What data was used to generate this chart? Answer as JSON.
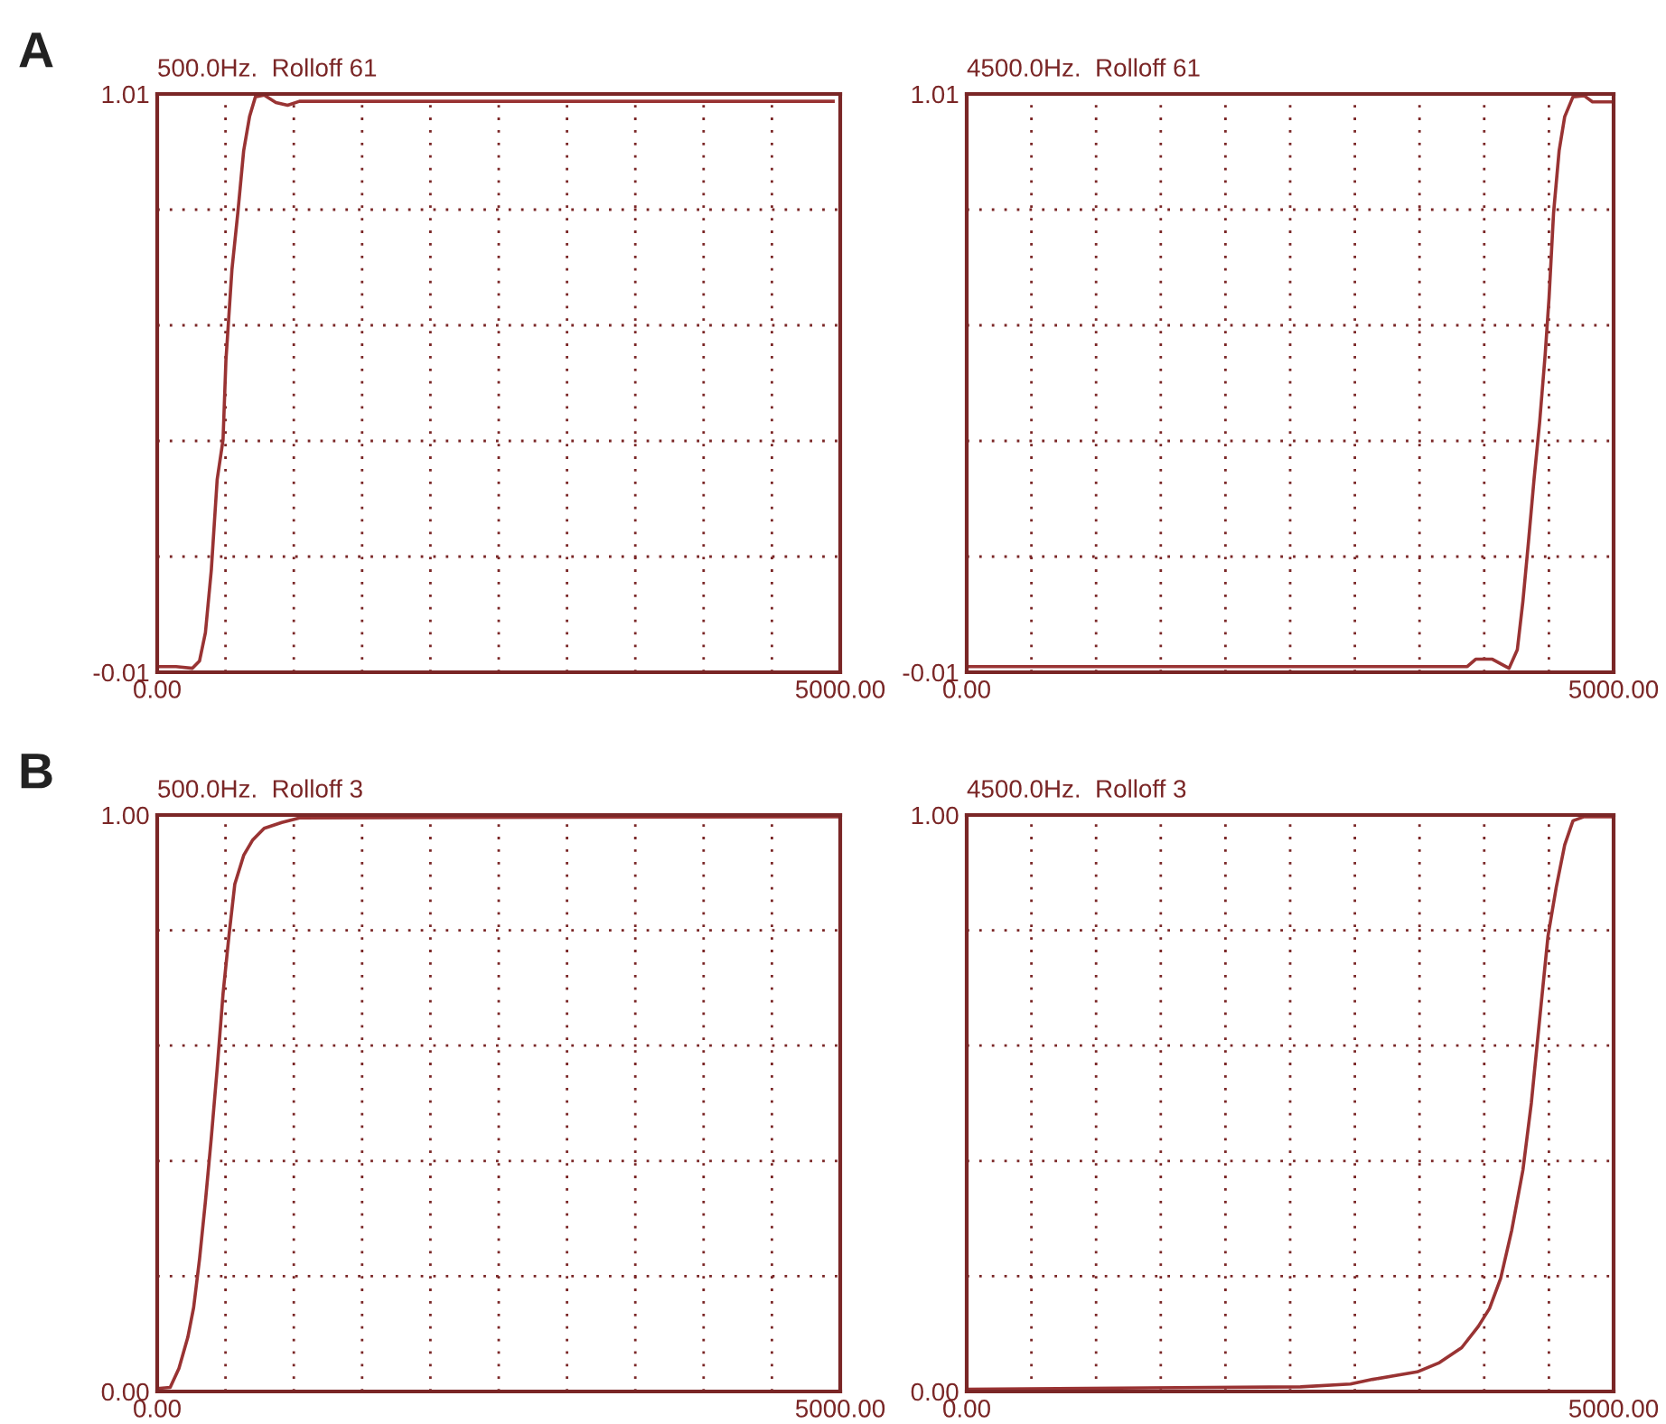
{
  "chart_data": [
    {
      "type": "line",
      "title": "500.0Hz.  Rolloff 61",
      "annotations": [
        "A"
      ],
      "grid": true,
      "line_style": "solid",
      "marker": "none",
      "xlim": [
        0,
        5000
      ],
      "xticks": [
        {
          "value": 0,
          "label": "0.00"
        },
        {
          "value": 500,
          "label": null
        },
        {
          "value": 1000,
          "label": null
        },
        {
          "value": 1500,
          "label": null
        },
        {
          "value": 2000,
          "label": null
        },
        {
          "value": 2500,
          "label": null
        },
        {
          "value": 3000,
          "label": null
        },
        {
          "value": 3500,
          "label": null
        },
        {
          "value": 4000,
          "label": null
        },
        {
          "value": 4500,
          "label": null
        },
        {
          "value": 5000,
          "label": "5000.00"
        }
      ],
      "ylim": [
        -0.01,
        1.01
      ],
      "yticks": [
        {
          "value": -0.01,
          "label": "-0.01"
        },
        {
          "value": 0.194,
          "label": null
        },
        {
          "value": 0.398,
          "label": null
        },
        {
          "value": 0.602,
          "label": null
        },
        {
          "value": 0.806,
          "label": null
        },
        {
          "value": 1.01,
          "label": "1.01"
        }
      ],
      "series": [
        {
          "color": "#993333",
          "x": [
            0,
            138,
            258,
            310,
            353,
            396,
            439,
            482,
            503,
            547,
            590,
            633,
            676,
            719,
            783,
            869,
            955,
            1041,
            1106,
            4948
          ],
          "values": [
            0.0,
            0.0,
            -0.003,
            0.01,
            0.06,
            0.17,
            0.33,
            0.4,
            0.54,
            0.7,
            0.8,
            0.91,
            0.97,
            1.005,
            1.008,
            0.995,
            0.99,
            0.997,
            0.997,
            0.997
          ]
        }
      ]
    },
    {
      "type": "line",
      "title": "4500.0Hz.  Rolloff 61",
      "grid": true,
      "line_style": "solid",
      "marker": "none",
      "xlim": [
        0,
        5000
      ],
      "xticks": [
        {
          "value": 0,
          "label": "0.00"
        },
        {
          "value": 500,
          "label": null
        },
        {
          "value": 1000,
          "label": null
        },
        {
          "value": 1500,
          "label": null
        },
        {
          "value": 2000,
          "label": null
        },
        {
          "value": 2500,
          "label": null
        },
        {
          "value": 3000,
          "label": null
        },
        {
          "value": 3500,
          "label": null
        },
        {
          "value": 4000,
          "label": null
        },
        {
          "value": 4500,
          "label": null
        },
        {
          "value": 5000,
          "label": "5000.00"
        }
      ],
      "ylim": [
        -0.01,
        1.01
      ],
      "yticks": [
        {
          "value": -0.01,
          "label": "-0.01"
        },
        {
          "value": 0.194,
          "label": null
        },
        {
          "value": 0.398,
          "label": null
        },
        {
          "value": 0.602,
          "label": null
        },
        {
          "value": 0.806,
          "label": null
        },
        {
          "value": 1.01,
          "label": "1.01"
        }
      ],
      "series": [
        {
          "color": "#993333",
          "x": [
            0,
            3869,
            3934,
            4063,
            4192,
            4256,
            4299,
            4342,
            4385,
            4428,
            4471,
            4501,
            4536,
            4579,
            4622,
            4686,
            4772,
            4837,
            5000
          ],
          "values": [
            0.0,
            0.0,
            0.013,
            0.013,
            -0.003,
            0.03,
            0.115,
            0.22,
            0.33,
            0.43,
            0.55,
            0.65,
            0.8,
            0.91,
            0.97,
            1.005,
            1.007,
            0.996,
            0.996
          ]
        }
      ]
    },
    {
      "type": "line",
      "title": "500.0Hz.  Rolloff 3",
      "annotations": [
        "B"
      ],
      "grid": true,
      "line_style": "solid",
      "marker": "none",
      "xlim": [
        0,
        5000
      ],
      "xticks": [
        {
          "value": 0,
          "label": "0.00"
        },
        {
          "value": 500,
          "label": null
        },
        {
          "value": 1000,
          "label": null
        },
        {
          "value": 1500,
          "label": null
        },
        {
          "value": 2000,
          "label": null
        },
        {
          "value": 2500,
          "label": null
        },
        {
          "value": 3000,
          "label": null
        },
        {
          "value": 3500,
          "label": null
        },
        {
          "value": 4000,
          "label": null
        },
        {
          "value": 4500,
          "label": null
        },
        {
          "value": 5000,
          "label": "5000.00"
        }
      ],
      "ylim": [
        0,
        1
      ],
      "yticks": [
        {
          "value": 0,
          "label": "0.00"
        },
        {
          "value": 0.2,
          "label": null
        },
        {
          "value": 0.4,
          "label": null
        },
        {
          "value": 0.6,
          "label": null
        },
        {
          "value": 0.8,
          "label": null
        },
        {
          "value": 1,
          "label": "1.00"
        }
      ],
      "series": [
        {
          "color": "#993333",
          "x": [
            0,
            95,
            159,
            224,
            267,
            310,
            353,
            396,
            439,
            482,
            525,
            568,
            633,
            697,
            783,
            912,
            1041,
            5000
          ],
          "values": [
            0.005,
            0.007,
            0.04,
            0.094,
            0.146,
            0.23,
            0.33,
            0.44,
            0.56,
            0.69,
            0.79,
            0.88,
            0.93,
            0.956,
            0.977,
            0.987,
            0.995,
            0.997
          ]
        }
      ]
    },
    {
      "type": "line",
      "title": "4500.0Hz.  Rolloff 3",
      "grid": true,
      "line_style": "solid",
      "marker": "none",
      "xlim": [
        0,
        5000
      ],
      "xticks": [
        {
          "value": 0,
          "label": "0.00"
        },
        {
          "value": 500,
          "label": null
        },
        {
          "value": 1000,
          "label": null
        },
        {
          "value": 1500,
          "label": null
        },
        {
          "value": 2000,
          "label": null
        },
        {
          "value": 2500,
          "label": null
        },
        {
          "value": 3000,
          "label": null
        },
        {
          "value": 3500,
          "label": null
        },
        {
          "value": 4000,
          "label": null
        },
        {
          "value": 4500,
          "label": null
        },
        {
          "value": 5000,
          "label": "5000.00"
        }
      ],
      "ylim": [
        0,
        1
      ],
      "yticks": [
        {
          "value": 0,
          "label": "0.00"
        },
        {
          "value": 0.2,
          "label": null
        },
        {
          "value": 0.4,
          "label": null
        },
        {
          "value": 0.6,
          "label": null
        },
        {
          "value": 0.8,
          "label": null
        },
        {
          "value": 1,
          "label": "1.00"
        }
      ],
      "series": [
        {
          "color": "#993333",
          "x": [
            0,
            2580,
            2966,
            3138,
            3482,
            3654,
            3826,
            3955,
            4041,
            4127,
            4213,
            4299,
            4364,
            4428,
            4493,
            4557,
            4622,
            4686,
            4772,
            5000
          ],
          "values": [
            0.004,
            0.008,
            0.013,
            0.021,
            0.034,
            0.05,
            0.076,
            0.113,
            0.144,
            0.196,
            0.28,
            0.384,
            0.5,
            0.645,
            0.79,
            0.875,
            0.948,
            0.99,
            0.997,
            0.997
          ]
        }
      ]
    }
  ]
}
